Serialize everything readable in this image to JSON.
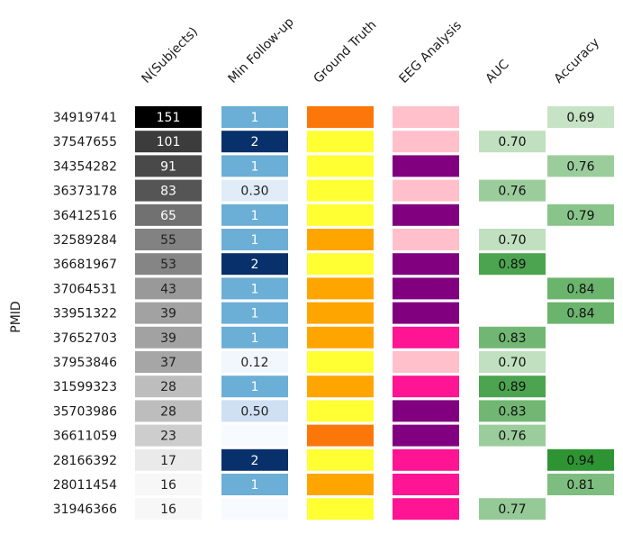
{
  "chart_data": {
    "type": "heatmap",
    "ylabel": "PMID",
    "columns": [
      "N(Subjects)",
      "Min Follow-up",
      "Ground Truth",
      "EEG Analysis",
      "AUC",
      "Accuracy"
    ],
    "rows": [
      {
        "pmid": "34919741",
        "n": 151,
        "follow": "1",
        "follow_level": 0.55,
        "gt": "#fc770a",
        "eeg": "#ffc0cb",
        "auc": null,
        "acc": "0.69"
      },
      {
        "pmid": "37547655",
        "n": 101,
        "follow": "2",
        "follow_level": 1.0,
        "gt": "#ffff33",
        "eeg": "#ffc0cb",
        "auc": "0.70",
        "acc": null
      },
      {
        "pmid": "34354282",
        "n": 91,
        "follow": "1",
        "follow_level": 0.55,
        "gt": "#ffff33",
        "eeg": "#800080",
        "auc": null,
        "acc": "0.76"
      },
      {
        "pmid": "36373178",
        "n": 83,
        "follow": "0.30",
        "follow_level": 0.12,
        "gt": "#ffff33",
        "eeg": "#ffc0cb",
        "auc": "0.76",
        "acc": null
      },
      {
        "pmid": "36412516",
        "n": 65,
        "follow": "1",
        "follow_level": 0.55,
        "gt": "#ffff33",
        "eeg": "#800080",
        "auc": null,
        "acc": "0.79"
      },
      {
        "pmid": "32589284",
        "n": 55,
        "follow": "1",
        "follow_level": 0.55,
        "gt": "#ffa500",
        "eeg": "#ffc0cb",
        "auc": "0.70",
        "acc": null
      },
      {
        "pmid": "36681967",
        "n": 53,
        "follow": "2",
        "follow_level": 1.0,
        "gt": "#ffff33",
        "eeg": "#800080",
        "auc": "0.89",
        "acc": null
      },
      {
        "pmid": "37064531",
        "n": 43,
        "follow": "1",
        "follow_level": 0.55,
        "gt": "#ffa500",
        "eeg": "#800080",
        "auc": null,
        "acc": "0.84"
      },
      {
        "pmid": "33951322",
        "n": 39,
        "follow": "1",
        "follow_level": 0.55,
        "gt": "#ffa500",
        "eeg": "#800080",
        "auc": null,
        "acc": "0.84"
      },
      {
        "pmid": "37652703",
        "n": 39,
        "follow": "1",
        "follow_level": 0.55,
        "gt": "#ffa500",
        "eeg": "#ff1493",
        "auc": "0.83",
        "acc": null
      },
      {
        "pmid": "37953846",
        "n": 37,
        "follow": "0.12",
        "follow_level": 0.03,
        "gt": "#ffff33",
        "eeg": "#ffc0cb",
        "auc": "0.70",
        "acc": null
      },
      {
        "pmid": "31599323",
        "n": 28,
        "follow": "1",
        "follow_level": 0.55,
        "gt": "#ffa500",
        "eeg": "#ff1493",
        "auc": "0.89",
        "acc": null
      },
      {
        "pmid": "35703986",
        "n": 28,
        "follow": "0.50",
        "follow_level": 0.22,
        "gt": "#ffff33",
        "eeg": "#800080",
        "auc": "0.83",
        "acc": null
      },
      {
        "pmid": "36611059",
        "n": 23,
        "follow": "",
        "follow_level": 0.0,
        "gt": "#fc770a",
        "eeg": "#800080",
        "auc": "0.76",
        "acc": null
      },
      {
        "pmid": "28166392",
        "n": 17,
        "follow": "2",
        "follow_level": 1.0,
        "gt": "#ffff33",
        "eeg": "#ff1493",
        "auc": null,
        "acc": "0.94"
      },
      {
        "pmid": "28011454",
        "n": 16,
        "follow": "1",
        "follow_level": 0.55,
        "gt": "#ffa500",
        "eeg": "#ff1493",
        "auc": null,
        "acc": "0.81"
      },
      {
        "pmid": "31946366",
        "n": 16,
        "follow": "",
        "follow_level": 0.0,
        "gt": "#ffff33",
        "eeg": "#ff1493",
        "auc": "0.77",
        "acc": null
      }
    ]
  }
}
